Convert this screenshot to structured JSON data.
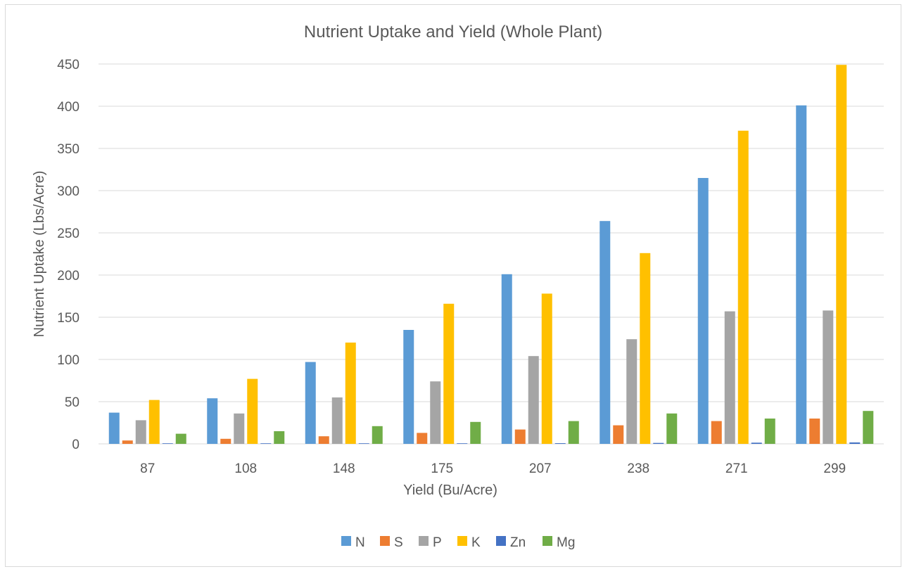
{
  "colors": {
    "N": "#5b9bd5",
    "S": "#ed7d31",
    "P": "#a5a5a5",
    "K": "#ffc000",
    "Zn": "#4472c4",
    "Mg": "#70ad47",
    "gridline": "#d9d9d9",
    "text": "#595959",
    "border": "#d9d9d9"
  },
  "chart_data": {
    "type": "bar",
    "title": "Nutrient Uptake and Yield (Whole Plant)",
    "xlabel": "Yield (Bu/Acre)",
    "ylabel": "Nutrient Uptake (Lbs/Acre)",
    "ylim": [
      0,
      450
    ],
    "yticks": [
      "0",
      "50",
      "100",
      "150",
      "200",
      "250",
      "300",
      "350",
      "400",
      "450"
    ],
    "grid": true,
    "legend_position": "bottom",
    "categories": [
      "87",
      "108",
      "148",
      "175",
      "207",
      "238",
      "271",
      "299"
    ],
    "series": [
      {
        "name": "N",
        "color": "#5b9bd5",
        "values": [
          37,
          54,
          97,
          135,
          201,
          264,
          315,
          401
        ]
      },
      {
        "name": "S",
        "color": "#ed7d31",
        "values": [
          4,
          6,
          9,
          13,
          17,
          22,
          27,
          30
        ]
      },
      {
        "name": "P",
        "color": "#a5a5a5",
        "values": [
          28,
          36,
          55,
          74,
          104,
          124,
          157,
          158
        ]
      },
      {
        "name": "K",
        "color": "#ffc000",
        "values": [
          52,
          77,
          120,
          166,
          178,
          226,
          371,
          449
        ]
      },
      {
        "name": "Zn",
        "color": "#4472c4",
        "values": [
          0.3,
          0.4,
          0.5,
          0.6,
          0.8,
          1.1,
          1.4,
          1.7
        ]
      },
      {
        "name": "Mg",
        "color": "#70ad47",
        "values": [
          12,
          15,
          21,
          26,
          27,
          36,
          30,
          39
        ]
      }
    ]
  }
}
